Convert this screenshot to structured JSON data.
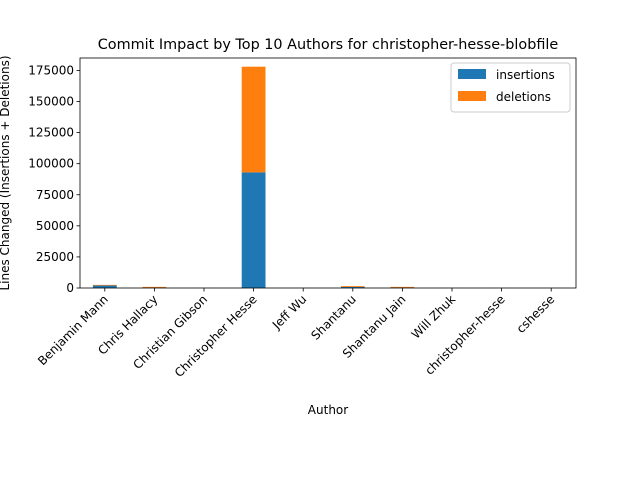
{
  "chart_data": {
    "type": "bar",
    "stacked": true,
    "title": "Commit Impact by Top 10 Authors for christopher-hesse-blobfile",
    "xlabel": "Author",
    "ylabel": "Lines Changed (Insertions + Deletions)",
    "ylim": [
      0,
      185000
    ],
    "yticks": [
      0,
      25000,
      50000,
      75000,
      100000,
      125000,
      150000,
      175000
    ],
    "categories": [
      "Benjamin Mann",
      "Chris Hallacy",
      "Christian Gibson",
      "Christopher Hesse",
      "Jeff Wu",
      "Shantanu",
      "Shantanu Jain",
      "Will Zhuk",
      "christopher-hesse",
      "cshesse"
    ],
    "series": [
      {
        "name": "insertions",
        "color": "#1f77b4",
        "values": [
          2000,
          300,
          50,
          93000,
          20,
          800,
          300,
          30,
          20,
          10
        ]
      },
      {
        "name": "deletions",
        "color": "#ff7f0e",
        "values": [
          500,
          600,
          20,
          85000,
          10,
          700,
          600,
          20,
          10,
          5
        ]
      }
    ],
    "legend_position": "top-right",
    "grid": false
  }
}
